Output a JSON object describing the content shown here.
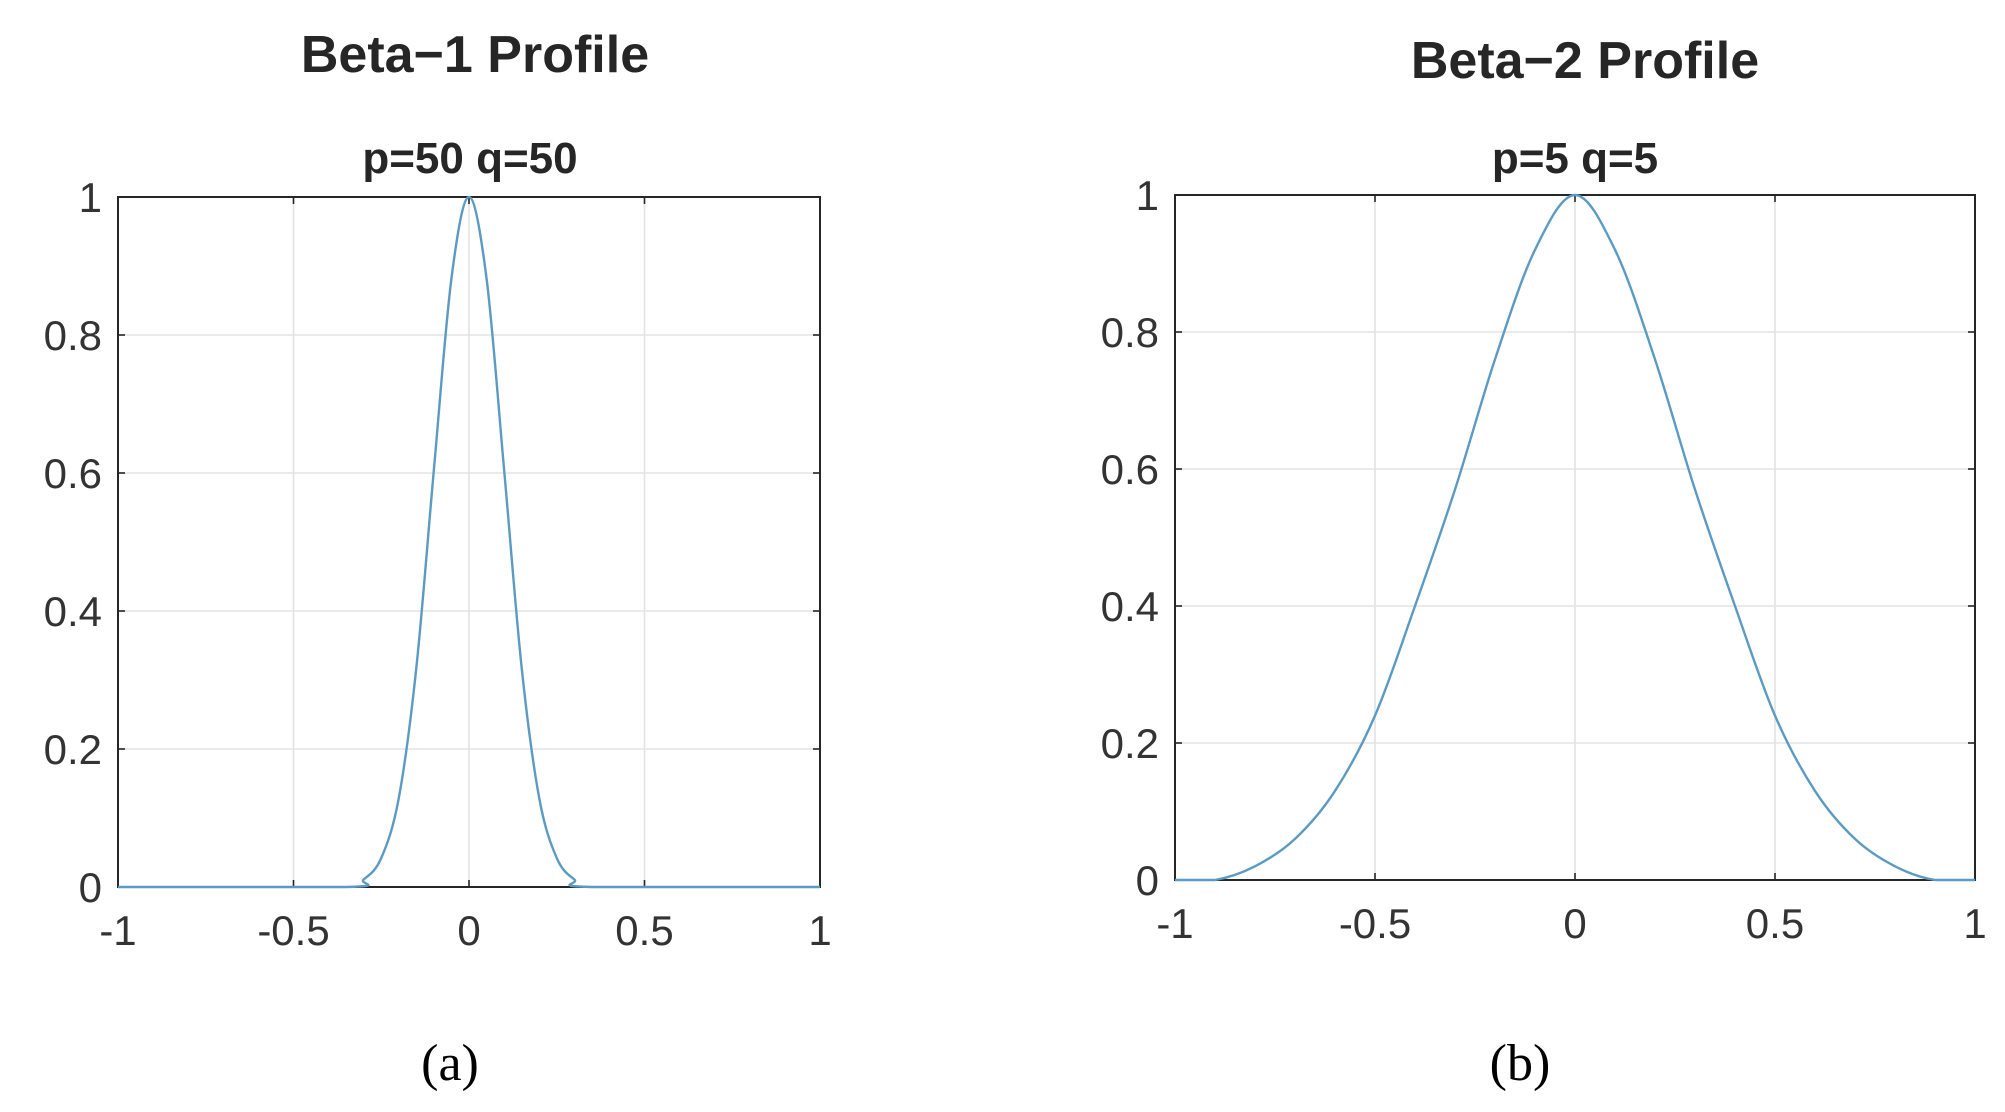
{
  "chart_data": [
    {
      "type": "line",
      "title": "Beta−1 Profile",
      "subtitle": "p=50 q=50",
      "panel_label": "(a)",
      "xlabel": "",
      "ylabel": "",
      "xlim": [
        -1,
        1
      ],
      "ylim": [
        0,
        1
      ],
      "xticks": [
        -1,
        -0.5,
        0,
        0.5,
        1
      ],
      "xtick_labels": [
        "-1",
        "-0.5",
        "0",
        "0.5",
        "1"
      ],
      "yticks": [
        0,
        0.2,
        0.4,
        0.6,
        0.8,
        1
      ],
      "ytick_labels": [
        "0",
        "0.2",
        "0.4",
        "0.6",
        "0.8",
        "1"
      ],
      "grid": true,
      "series": [
        {
          "name": "beta-1",
          "color": "#5b9bc3",
          "x": [
            -1.0,
            -0.35,
            -0.3,
            -0.25,
            -0.2,
            -0.15,
            -0.1,
            -0.05,
            0.0,
            0.05,
            0.1,
            0.15,
            0.2,
            0.25,
            0.3,
            0.35,
            1.0
          ],
          "y": [
            0.0,
            0.0,
            0.011,
            0.042,
            0.129,
            0.318,
            0.605,
            0.882,
            1.0,
            0.882,
            0.605,
            0.318,
            0.129,
            0.042,
            0.011,
            0.0,
            0.0
          ]
        }
      ]
    },
    {
      "type": "line",
      "title": "Beta−2 Profile",
      "subtitle": "p=5 q=5",
      "panel_label": "(b)",
      "xlabel": "",
      "ylabel": "",
      "xlim": [
        -1,
        1
      ],
      "ylim": [
        0,
        1
      ],
      "xticks": [
        -1,
        -0.5,
        0,
        0.5,
        1
      ],
      "xtick_labels": [
        "-1",
        "-0.5",
        "0",
        "0.5",
        "1"
      ],
      "yticks": [
        0,
        0.2,
        0.4,
        0.6,
        0.8,
        1
      ],
      "ytick_labels": [
        "0",
        "0.2",
        "0.4",
        "0.6",
        "0.8",
        "1"
      ],
      "grid": true,
      "series": [
        {
          "name": "beta-2",
          "color": "#5b9bc3",
          "x": [
            -1.0,
            -0.9,
            -0.8,
            -0.7,
            -0.6,
            -0.5,
            -0.4,
            -0.3,
            -0.2,
            -0.1,
            0.0,
            0.1,
            0.2,
            0.3,
            0.4,
            0.5,
            0.6,
            0.7,
            0.8,
            0.9,
            1.0
          ],
          "y": [
            0.0,
            0.0,
            0.02,
            0.06,
            0.13,
            0.24,
            0.4,
            0.57,
            0.76,
            0.92,
            1.0,
            0.92,
            0.76,
            0.57,
            0.4,
            0.24,
            0.13,
            0.06,
            0.02,
            0.0,
            0.0
          ]
        }
      ]
    }
  ]
}
